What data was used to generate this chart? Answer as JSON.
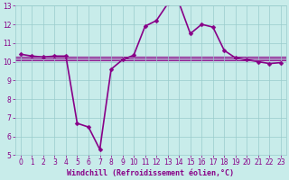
{
  "x": [
    0,
    1,
    2,
    3,
    4,
    5,
    6,
    7,
    8,
    9,
    10,
    11,
    12,
    13,
    14,
    15,
    16,
    17,
    18,
    19,
    20,
    21,
    22,
    23
  ],
  "y": [
    10.4,
    10.3,
    10.25,
    10.3,
    10.3,
    6.7,
    6.5,
    5.3,
    9.6,
    10.1,
    10.35,
    11.9,
    12.2,
    13.1,
    13.15,
    11.5,
    12.0,
    11.85,
    10.6,
    10.2,
    10.1,
    10.0,
    9.9,
    9.95
  ],
  "hlines": [
    10.05,
    10.15,
    10.25
  ],
  "line_color": "#880088",
  "bg_color": "#c8ecea",
  "grid_color": "#99cccc",
  "xlabel": "Windchill (Refroidissement éolien,°C)",
  "xlim": [
    -0.5,
    23.5
  ],
  "ylim": [
    5,
    13
  ],
  "yticks": [
    5,
    6,
    7,
    8,
    9,
    10,
    11,
    12,
    13
  ],
  "xticks": [
    0,
    1,
    2,
    3,
    4,
    5,
    6,
    7,
    8,
    9,
    10,
    11,
    12,
    13,
    14,
    15,
    16,
    17,
    18,
    19,
    20,
    21,
    22,
    23
  ],
  "tick_color": "#880088",
  "line_width": 1.2,
  "marker_size": 2.5,
  "xlabel_fontsize": 6.0,
  "tick_fontsize": 5.5
}
